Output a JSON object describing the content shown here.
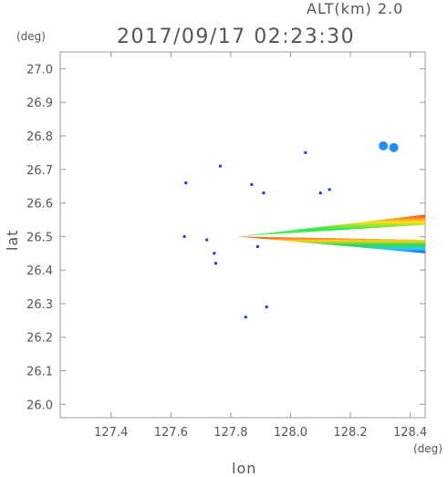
{
  "header": {
    "altitude_label": "ALT(km) 2.0",
    "timestamp": "2017/09/17 02:23:30"
  },
  "chart_data": {
    "type": "scatter",
    "title": "2017/09/17 02:23:30",
    "subtitle": "ALT(km) 2.0",
    "xlabel": "lon",
    "ylabel": "lat",
    "x_unit": "(deg)",
    "y_unit": "(deg)",
    "xlim": [
      127.23,
      128.45
    ],
    "ylim": [
      25.96,
      27.05
    ],
    "x_ticks": [
      127.4,
      127.6,
      127.8,
      128.0,
      128.2,
      128.4
    ],
    "x_tick_labels": [
      "127.4",
      "127.6",
      "127.8",
      "128.0",
      "128.2",
      "128.4"
    ],
    "y_ticks": [
      26.0,
      26.1,
      26.2,
      26.3,
      26.4,
      26.5,
      26.6,
      26.7,
      26.8,
      26.9,
      27.0
    ],
    "y_tick_labels": [
      "26.0",
      "26.1",
      "26.2",
      "26.3",
      "26.4",
      "26.5",
      "26.6",
      "26.7",
      "26.8",
      "26.9",
      "27.0"
    ],
    "grid": false,
    "echo_points": [
      {
        "x": 127.65,
        "y": 26.66
      },
      {
        "x": 127.645,
        "y": 26.5
      },
      {
        "x": 127.72,
        "y": 26.49
      },
      {
        "x": 127.745,
        "y": 26.45
      },
      {
        "x": 127.75,
        "y": 26.42
      },
      {
        "x": 127.765,
        "y": 26.71
      },
      {
        "x": 127.87,
        "y": 26.655
      },
      {
        "x": 127.91,
        "y": 26.63
      },
      {
        "x": 127.89,
        "y": 26.47
      },
      {
        "x": 127.92,
        "y": 26.29
      },
      {
        "x": 127.85,
        "y": 26.26
      },
      {
        "x": 128.05,
        "y": 26.75
      },
      {
        "x": 128.1,
        "y": 26.63
      },
      {
        "x": 128.13,
        "y": 26.64
      },
      {
        "x": 128.31,
        "y": 26.77
      },
      {
        "x": 128.345,
        "y": 26.765
      }
    ],
    "spike_wedges": [
      {
        "apex": [
          127.82,
          26.5
        ],
        "edges": [
          [
            128.45,
            26.565
          ],
          [
            128.45,
            26.535
          ]
        ],
        "colors": [
          "#ff3b1f",
          "#ffe11a",
          "#2ee84a",
          "#7cf58a"
        ]
      },
      {
        "apex": [
          127.82,
          26.5
        ],
        "edges": [
          [
            128.45,
            26.49
          ],
          [
            128.45,
            26.45
          ]
        ],
        "colors": [
          "#ff3b1f",
          "#ffd21a",
          "#2ed84a",
          "#28c8ff",
          "#1a4cff"
        ]
      }
    ]
  }
}
